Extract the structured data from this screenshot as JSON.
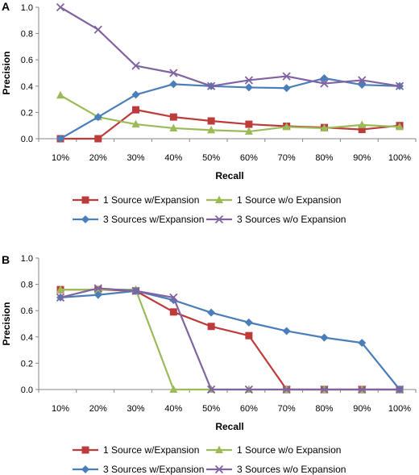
{
  "chart_data": [
    {
      "type": "line",
      "panel": "A",
      "xlabel": "Recall",
      "ylabel": "Precision",
      "categories": [
        "10%",
        "20%",
        "30%",
        "40%",
        "50%",
        "60%",
        "70%",
        "80%",
        "90%",
        "100%"
      ],
      "ylim": [
        0,
        1.0
      ],
      "yticks": [
        "0.0",
        "0.2",
        "0.4",
        "0.6",
        "0.8",
        "1.0"
      ],
      "grid": false,
      "legend_position": "bottom",
      "series": [
        {
          "name": "1 Source w/Expansion",
          "color": "#be3b3b",
          "marker": "square",
          "values": [
            0.0,
            0.0,
            0.22,
            0.165,
            0.135,
            0.11,
            0.095,
            0.085,
            0.07,
            0.1
          ]
        },
        {
          "name": "1 Source w/o Expansion",
          "color": "#9bbb59",
          "marker": "triangle",
          "values": [
            0.33,
            0.165,
            0.11,
            0.08,
            0.065,
            0.055,
            0.09,
            0.08,
            0.105,
            0.09
          ]
        },
        {
          "name": "3 Sources w/Expansion",
          "color": "#4a7ebb",
          "marker": "diamond",
          "values": [
            0.0,
            0.165,
            0.335,
            0.415,
            0.4,
            0.39,
            0.385,
            0.46,
            0.41,
            0.4
          ]
        },
        {
          "name": "3 Sources w/o Expansion",
          "color": "#8064a2",
          "marker": "cross",
          "values": [
            1.0,
            0.83,
            0.555,
            0.5,
            0.4,
            0.445,
            0.475,
            0.42,
            0.445,
            0.4
          ]
        }
      ]
    },
    {
      "type": "line",
      "panel": "B",
      "xlabel": "Recall",
      "ylabel": "Precision",
      "categories": [
        "10%",
        "20%",
        "30%",
        "40%",
        "50%",
        "60%",
        "70%",
        "80%",
        "90%",
        "100%"
      ],
      "ylim": [
        0,
        1.0
      ],
      "yticks": [
        "0.0",
        "0.2",
        "0.4",
        "0.6",
        "0.8",
        "1.0"
      ],
      "grid": false,
      "legend_position": "bottom",
      "series": [
        {
          "name": "1 Source w/Expansion",
          "color": "#be3b3b",
          "marker": "square",
          "values": [
            0.76,
            0.76,
            0.75,
            0.59,
            0.48,
            0.41,
            0.0,
            0.0,
            0.0,
            0.0
          ]
        },
        {
          "name": "1 Source w/o Expansion",
          "color": "#9bbb59",
          "marker": "triangle",
          "values": [
            0.76,
            0.76,
            0.76,
            0.0,
            0.0,
            0.0,
            0.0,
            0.0,
            0.0,
            0.0
          ]
        },
        {
          "name": "3 Sources w/Expansion",
          "color": "#4a7ebb",
          "marker": "diamond",
          "values": [
            0.7,
            0.72,
            0.75,
            0.68,
            0.585,
            0.51,
            0.445,
            0.395,
            0.355,
            0.0
          ]
        },
        {
          "name": "3 Sources w/o Expansion",
          "color": "#8064a2",
          "marker": "cross",
          "values": [
            0.7,
            0.77,
            0.75,
            0.7,
            0.0,
            0.0,
            0.0,
            0.0,
            0.0,
            0.0
          ]
        }
      ]
    }
  ]
}
